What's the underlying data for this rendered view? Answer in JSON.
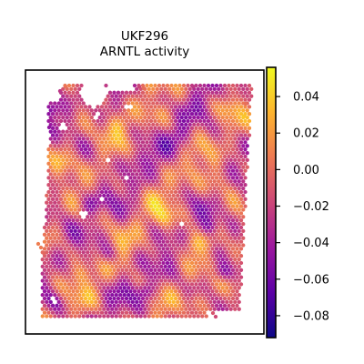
{
  "chart_data": {
    "type": "heatmap",
    "title": "UKF296",
    "subtitle": "ARNTL activity",
    "xlabel": "",
    "ylabel": "",
    "grid": false,
    "axes_ticks": false,
    "colormap": "plasma",
    "colormap_stops": [
      "#0d0887",
      "#5c01a6",
      "#9c179e",
      "#cc4778",
      "#ed7953",
      "#fdb42f",
      "#f0f921"
    ],
    "colorbar": {
      "vmin": -0.092,
      "vmax": 0.056,
      "ticks": [
        0.04,
        0.02,
        0.0,
        -0.02,
        -0.04,
        -0.06,
        -0.08
      ],
      "tick_labels": [
        "0.04",
        "0.02",
        "0.00",
        "−0.02",
        "−0.04",
        "−0.06",
        "−0.08"
      ]
    },
    "spot_value_range": [
      -0.085,
      0.052
    ],
    "value_centre": -0.012
  }
}
